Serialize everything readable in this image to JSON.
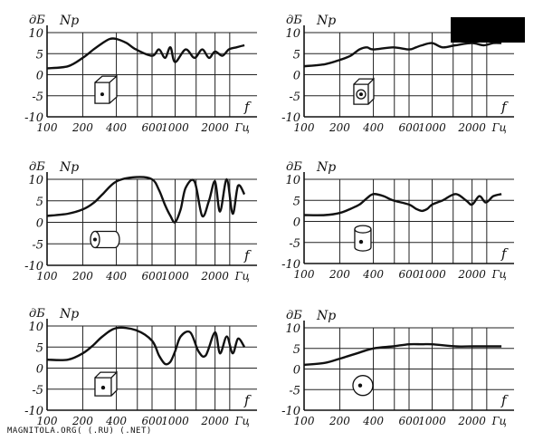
{
  "footer_text": "MAGNITOLA.ORG( (.RU) (.NET)",
  "chart_data": [
    {
      "type": "line",
      "panel": "top-left",
      "ylabel": "дБ",
      "series_label": "Np",
      "xlabel": "f",
      "yticks": [
        "10",
        "5",
        "0",
        "-5",
        "-10"
      ],
      "xticks": [
        "100",
        "200",
        "400",
        "600",
        "1000",
        "2000",
        "Гц"
      ],
      "ylim": [
        -10,
        10
      ],
      "grid": true,
      "icon": "box-speaker-front",
      "series": [
        {
          "x": [
            100,
            150,
            200,
            250,
            300,
            350,
            400,
            450,
            500,
            600,
            700,
            800,
            900,
            1000,
            1200,
            1400,
            1600,
            1800,
            2000,
            2300,
            2600,
            3000,
            3500
          ],
          "y": [
            1.5,
            2,
            4,
            6,
            7.5,
            8.5,
            8.5,
            7.5,
            6,
            4.5,
            6,
            4,
            6.5,
            3,
            6,
            4,
            6,
            4,
            5.5,
            4.5,
            6,
            6.5,
            7
          ]
        }
      ]
    },
    {
      "type": "line",
      "panel": "top-right",
      "ylabel": "дБ",
      "series_label": "Np",
      "xlabel": "f",
      "yticks": [
        "10",
        "5",
        "0",
        "-5",
        "-10"
      ],
      "xticks": [
        "100",
        "200",
        "400",
        "600",
        "1000",
        "2000",
        "Гц"
      ],
      "ylim": [
        -10,
        10
      ],
      "grid": true,
      "icon": "box-speaker-cone",
      "series": [
        {
          "x": [
            100,
            150,
            200,
            250,
            300,
            350,
            400,
            500,
            600,
            700,
            800,
            1000,
            1200,
            1500,
            2000,
            2500,
            3000,
            3500
          ],
          "y": [
            2,
            2.5,
            3.5,
            4.5,
            6,
            6.5,
            6,
            6.5,
            6,
            6.5,
            7,
            7.5,
            6.5,
            7,
            7.5,
            7,
            7.5,
            7.5
          ]
        }
      ]
    },
    {
      "type": "line",
      "panel": "middle-left",
      "ylabel": "дБ",
      "series_label": "Np",
      "xlabel": "f",
      "yticks": [
        "10",
        "5",
        "0",
        "-5",
        "-10"
      ],
      "xticks": [
        "100",
        "200",
        "400",
        "600",
        "1000",
        "2000",
        "Гц"
      ],
      "ylim": [
        -10,
        10
      ],
      "grid": true,
      "icon": "cylinder-side",
      "series": [
        {
          "x": [
            100,
            150,
            200,
            250,
            300,
            400,
            500,
            600,
            700,
            800,
            900,
            1000,
            1100,
            1200,
            1400,
            1600,
            1800,
            2000,
            2200,
            2500,
            2800,
            3100,
            3500
          ],
          "y": [
            1.5,
            2,
            3,
            4.5,
            6.5,
            9.5,
            10.5,
            10,
            7.5,
            4,
            1.5,
            0,
            3,
            8,
            9.5,
            1.5,
            5,
            9.5,
            2.5,
            10,
            2,
            8.5,
            6.5
          ]
        }
      ]
    },
    {
      "type": "line",
      "panel": "middle-right",
      "ylabel": "дБ",
      "series_label": "Np",
      "xlabel": "f",
      "yticks": [
        "10",
        "5",
        "0",
        "-5",
        "-10"
      ],
      "xticks": [
        "100",
        "200",
        "400",
        "600",
        "1000",
        "2000",
        "Гц"
      ],
      "ylim": [
        -10,
        10
      ],
      "grid": true,
      "icon": "cylinder-top",
      "series": [
        {
          "x": [
            100,
            150,
            200,
            250,
            300,
            350,
            400,
            450,
            500,
            600,
            700,
            800,
            900,
            1000,
            1200,
            1500,
            1800,
            2000,
            2300,
            2600,
            3000,
            3500
          ],
          "y": [
            1.5,
            1.5,
            2,
            3,
            4,
            5.5,
            6.5,
            6,
            5,
            4,
            3,
            2.5,
            3,
            4,
            5,
            6.5,
            5,
            4,
            6,
            4.5,
            6,
            6.5
          ]
        }
      ]
    },
    {
      "type": "line",
      "panel": "bottom-left",
      "ylabel": "дБ",
      "series_label": "Np",
      "xlabel": "f",
      "yticks": [
        "10",
        "5",
        "0",
        "-5",
        "-10"
      ],
      "xticks": [
        "100",
        "200",
        "400",
        "600",
        "1000",
        "2000",
        "Гц"
      ],
      "ylim": [
        -10,
        10
      ],
      "grid": true,
      "icon": "box-speaker-corner",
      "series": [
        {
          "x": [
            100,
            150,
            200,
            250,
            300,
            400,
            500,
            600,
            700,
            800,
            900,
            1000,
            1100,
            1300,
            1500,
            1700,
            2000,
            2200,
            2500,
            2800,
            3100,
            3500
          ],
          "y": [
            2,
            2,
            3.5,
            5.5,
            7.5,
            9.5,
            9,
            6.5,
            3,
            1,
            1.5,
            4,
            7.5,
            8.5,
            4,
            3,
            8.5,
            3.5,
            7.5,
            3.5,
            7,
            5
          ]
        }
      ]
    },
    {
      "type": "line",
      "panel": "bottom-right",
      "ylabel": "дБ",
      "series_label": "Np",
      "xlabel": "f",
      "yticks": [
        "10",
        "5",
        "0",
        "-5",
        "-10"
      ],
      "xticks": [
        "100",
        "200",
        "400",
        "600",
        "1000",
        "2000",
        "Гц"
      ],
      "ylim": [
        -10,
        10
      ],
      "grid": true,
      "icon": "sphere",
      "series": [
        {
          "x": [
            100,
            150,
            200,
            300,
            400,
            500,
            600,
            800,
            1000,
            1500,
            2000,
            2500,
            3000,
            3500
          ],
          "y": [
            1,
            1.5,
            2.5,
            4,
            5,
            5.5,
            6,
            6,
            6,
            5.5,
            5.5,
            5.5,
            5.5,
            5.5
          ]
        }
      ]
    }
  ]
}
